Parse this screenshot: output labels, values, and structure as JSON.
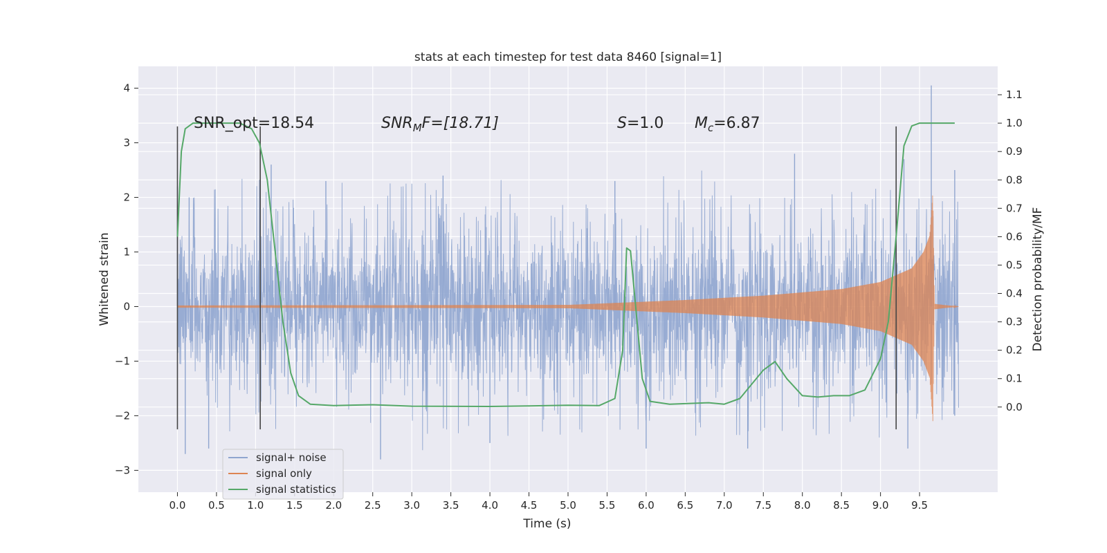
{
  "chart_data": {
    "type": "line",
    "title": "stats at each timestep for test data 8460 [signal=1]",
    "xlabel": "Time (s)",
    "ylabel": "Whitened strain",
    "y2label": "Detection probability/MF",
    "xlim": [
      -0.5,
      10.5
    ],
    "ylim": [
      -3.4,
      4.4
    ],
    "y2lim": [
      -0.3,
      1.2
    ],
    "xticks": [
      "0.0",
      "0.5",
      "1.0",
      "1.5",
      "2.0",
      "2.5",
      "3.0",
      "3.5",
      "4.0",
      "4.5",
      "5.0",
      "5.5",
      "6.0",
      "6.5",
      "7.0",
      "7.5",
      "8.0",
      "8.5",
      "9.0",
      "9.5"
    ],
    "yticks": [
      "−3",
      "−2",
      "−1",
      "0",
      "1",
      "2",
      "3",
      "4"
    ],
    "y2ticks": [
      "0.0",
      "0.1",
      "0.2",
      "0.3",
      "0.4",
      "0.5",
      "0.6",
      "0.7",
      "0.8",
      "0.9",
      "1.0",
      "1.1"
    ],
    "grid": true,
    "legend_position": "lower-left",
    "colors": {
      "background": "#eaeaf2",
      "grid": "#ffffff",
      "noise": "#8fa5cf",
      "signal": "#dd8452",
      "stat": "#55a868",
      "marker": "#444444"
    },
    "series": [
      {
        "name": "signal+ noise",
        "axis": "left",
        "x_range": [
          0.0,
          10.0
        ],
        "sample_rate_hz": 2048,
        "envelope": {
          "upper_typical": 1.5,
          "lower_typical": -1.5,
          "upper_peaks": [
            [
              0.0,
              2.2
            ],
            [
              0.15,
              2.0
            ],
            [
              1.2,
              2.6
            ],
            [
              1.9,
              2.3
            ],
            [
              3.4,
              2.4
            ],
            [
              5.6,
              2.3
            ],
            [
              7.9,
              2.8
            ],
            [
              9.3,
              2.7
            ],
            [
              9.65,
              4.05
            ],
            [
              9.95,
              2.5
            ]
          ],
          "lower_peaks": [
            [
              0.1,
              -2.7
            ],
            [
              0.4,
              -2.6
            ],
            [
              2.6,
              -2.8
            ],
            [
              4.0,
              -2.5
            ],
            [
              6.0,
              -2.6
            ],
            [
              7.3,
              -2.6
            ],
            [
              9.35,
              -2.6
            ],
            [
              9.95,
              -2.0
            ]
          ]
        }
      },
      {
        "name": "signal only",
        "axis": "left",
        "x_range": [
          0.0,
          10.0
        ],
        "chirp_amplitude": [
          [
            0.0,
            0.02
          ],
          [
            5.0,
            0.03
          ],
          [
            5.5,
            0.06
          ],
          [
            6.5,
            0.12
          ],
          [
            7.5,
            0.2
          ],
          [
            8.5,
            0.32
          ],
          [
            9.0,
            0.45
          ],
          [
            9.4,
            0.7
          ],
          [
            9.55,
            1.0
          ],
          [
            9.63,
            1.3
          ],
          [
            9.67,
            2.1
          ],
          [
            9.69,
            0.05
          ],
          [
            9.8,
            0.03
          ],
          [
            10.0,
            0.0
          ]
        ]
      },
      {
        "name": "signal statistics",
        "axis": "right",
        "points": [
          [
            0.0,
            0.6
          ],
          [
            0.05,
            0.9
          ],
          [
            0.1,
            0.98
          ],
          [
            0.2,
            1.0
          ],
          [
            0.5,
            1.0
          ],
          [
            0.8,
            1.0
          ],
          [
            0.95,
            0.98
          ],
          [
            1.05,
            0.93
          ],
          [
            1.15,
            0.8
          ],
          [
            1.25,
            0.55
          ],
          [
            1.35,
            0.3
          ],
          [
            1.45,
            0.12
          ],
          [
            1.55,
            0.04
          ],
          [
            1.7,
            0.01
          ],
          [
            2.0,
            0.005
          ],
          [
            2.5,
            0.008
          ],
          [
            3.0,
            0.003
          ],
          [
            4.0,
            0.002
          ],
          [
            4.5,
            0.004
          ],
          [
            5.0,
            0.006
          ],
          [
            5.4,
            0.005
          ],
          [
            5.6,
            0.03
          ],
          [
            5.7,
            0.2
          ],
          [
            5.75,
            0.56
          ],
          [
            5.8,
            0.55
          ],
          [
            5.85,
            0.4
          ],
          [
            5.95,
            0.1
          ],
          [
            6.05,
            0.02
          ],
          [
            6.3,
            0.01
          ],
          [
            6.8,
            0.015
          ],
          [
            7.0,
            0.01
          ],
          [
            7.2,
            0.03
          ],
          [
            7.5,
            0.13
          ],
          [
            7.65,
            0.16
          ],
          [
            7.8,
            0.1
          ],
          [
            8.0,
            0.04
          ],
          [
            8.2,
            0.035
          ],
          [
            8.4,
            0.04
          ],
          [
            8.6,
            0.04
          ],
          [
            8.8,
            0.06
          ],
          [
            9.0,
            0.17
          ],
          [
            9.1,
            0.3
          ],
          [
            9.2,
            0.6
          ],
          [
            9.3,
            0.92
          ],
          [
            9.4,
            0.99
          ],
          [
            9.5,
            1.0
          ],
          [
            9.95,
            1.0
          ]
        ]
      }
    ],
    "markers": [
      {
        "x": 0.0,
        "y_range": [
          -2.25,
          3.3
        ]
      },
      {
        "x": 1.06,
        "y_range": [
          -2.25,
          3.3
        ]
      },
      {
        "x": 9.2,
        "y_range": [
          -2.25,
          3.3
        ]
      }
    ],
    "annotations": {
      "snr_opt": "SNR_opt=18.54",
      "snr_mf_base": "SNR",
      "snr_mf_sub": "M",
      "snr_mf_rest": "F=[18.71]",
      "s_var": "S",
      "s_rest": "=1.0",
      "mc_var": "M",
      "mc_sub": "c",
      "mc_rest": "=6.87"
    }
  }
}
